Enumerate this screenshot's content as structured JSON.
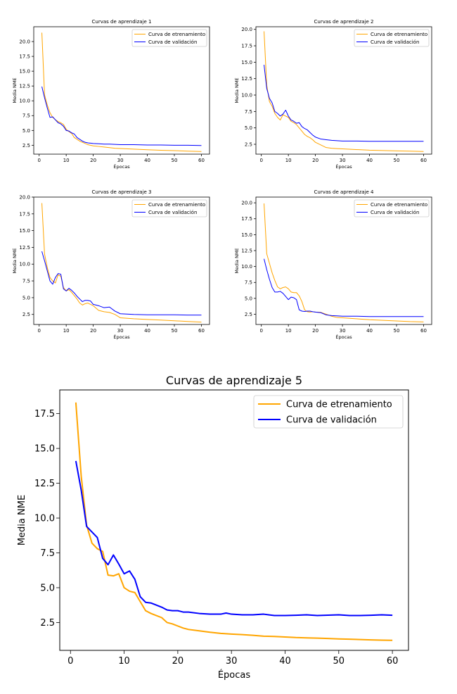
{
  "colors": {
    "train": "#FFA500",
    "val": "#0000FF",
    "axis": "#000000",
    "background": "#FFFFFF"
  },
  "chart_data": [
    {
      "type": "line",
      "title": "Curvas de aprendizaje 1",
      "xlabel": "Épocas",
      "ylabel": "Media NME",
      "xlim": [
        -2.0,
        63.0
      ],
      "ylim": [
        1.0,
        22.5
      ],
      "xticks": [
        0,
        10,
        20,
        30,
        40,
        50,
        60
      ],
      "yticks": [
        2.5,
        5.0,
        7.5,
        10.0,
        12.5,
        15.0,
        17.5,
        20.0
      ],
      "legend": "upper right",
      "series": [
        {
          "name": "Curva de etrenamiento",
          "color": "#FFA500",
          "x": [
            1,
            2,
            3,
            4,
            5,
            6,
            7,
            8,
            9,
            10,
            11,
            12,
            13,
            14,
            15,
            16,
            17,
            18,
            19,
            20,
            22,
            24,
            26,
            28,
            30,
            35,
            40,
            45,
            50,
            55,
            60
          ],
          "y": [
            21.5,
            11.0,
            9.3,
            8.0,
            7.2,
            6.8,
            6.5,
            6.3,
            6.0,
            5.2,
            4.8,
            4.5,
            3.8,
            3.5,
            3.2,
            3.0,
            2.8,
            2.6,
            2.5,
            2.4,
            2.3,
            2.2,
            2.1,
            2.0,
            1.95,
            1.85,
            1.75,
            1.65,
            1.6,
            1.5,
            1.45
          ]
        },
        {
          "name": "Curva de validación",
          "color": "#0000FF",
          "x": [
            1,
            2,
            3,
            4,
            5,
            6,
            7,
            8,
            9,
            10,
            11,
            12,
            13,
            14,
            15,
            16,
            17,
            18,
            19,
            20,
            22,
            24,
            26,
            28,
            30,
            35,
            40,
            45,
            50,
            55,
            60
          ],
          "y": [
            12.4,
            10.5,
            8.8,
            7.2,
            7.3,
            6.8,
            6.3,
            6.1,
            5.7,
            5.0,
            4.9,
            4.6,
            4.4,
            3.8,
            3.5,
            3.2,
            3.0,
            2.9,
            2.85,
            2.8,
            2.75,
            2.7,
            2.7,
            2.65,
            2.6,
            2.6,
            2.55,
            2.55,
            2.5,
            2.5,
            2.45
          ]
        }
      ]
    },
    {
      "type": "line",
      "title": "Curvas de aprendizaje 2",
      "xlabel": "Épocas",
      "ylabel": "Media NME",
      "xlim": [
        -2.0,
        63.0
      ],
      "ylim": [
        1.0,
        20.4
      ],
      "xticks": [
        0,
        10,
        20,
        30,
        40,
        50,
        60
      ],
      "yticks": [
        2.5,
        5.0,
        7.5,
        10.0,
        12.5,
        15.0,
        17.5,
        20.0
      ],
      "legend": "upper right",
      "series": [
        {
          "name": "Curva de etrenamiento",
          "color": "#FFA500",
          "x": [
            1,
            2,
            3,
            4,
            5,
            6,
            7,
            8,
            9,
            10,
            11,
            12,
            13,
            14,
            15,
            16,
            17,
            18,
            19,
            20,
            22,
            24,
            26,
            28,
            30,
            35,
            40,
            45,
            50,
            55,
            60
          ],
          "y": [
            19.7,
            11.5,
            9.0,
            8.3,
            7.2,
            6.6,
            6.2,
            7.0,
            6.8,
            6.6,
            6.0,
            5.8,
            5.5,
            5.0,
            4.5,
            4.0,
            3.7,
            3.5,
            3.2,
            2.8,
            2.4,
            2.0,
            1.9,
            1.85,
            1.8,
            1.7,
            1.6,
            1.55,
            1.5,
            1.45,
            1.4
          ]
        },
        {
          "name": "Curva de validación",
          "color": "#0000FF",
          "x": [
            1,
            2,
            3,
            4,
            5,
            6,
            7,
            8,
            9,
            10,
            11,
            12,
            13,
            14,
            15,
            16,
            17,
            18,
            19,
            20,
            22,
            24,
            26,
            28,
            30,
            35,
            40,
            45,
            50,
            55,
            60
          ],
          "y": [
            14.6,
            11.0,
            9.5,
            8.8,
            7.5,
            7.2,
            6.8,
            7.1,
            7.7,
            6.8,
            6.2,
            6.0,
            5.7,
            5.8,
            5.2,
            4.9,
            4.7,
            4.3,
            3.9,
            3.6,
            3.3,
            3.2,
            3.1,
            3.05,
            3.0,
            3.0,
            2.95,
            2.95,
            2.95,
            2.95,
            2.95
          ]
        }
      ]
    },
    {
      "type": "line",
      "title": "Curvas de aprendizaje 3",
      "xlabel": "Épocas",
      "ylabel": "Media NME",
      "xlim": [
        -2.0,
        63.0
      ],
      "ylim": [
        1.0,
        20.0
      ],
      "xticks": [
        0,
        10,
        20,
        30,
        40,
        50,
        60
      ],
      "yticks": [
        2.5,
        5.0,
        7.5,
        10.0,
        12.5,
        15.0,
        17.5,
        20.0
      ],
      "legend": "upper right",
      "series": [
        {
          "name": "Curva de etrenamiento",
          "color": "#FFA500",
          "x": [
            1,
            2,
            3,
            4,
            5,
            6,
            7,
            8,
            9,
            10,
            11,
            12,
            13,
            14,
            15,
            16,
            17,
            18,
            19,
            20,
            22,
            24,
            26,
            28,
            30,
            35,
            40,
            45,
            50,
            55,
            60
          ],
          "y": [
            19.1,
            11.5,
            9.5,
            8.0,
            7.5,
            7.2,
            8.4,
            8.2,
            6.5,
            6.0,
            6.2,
            5.8,
            5.3,
            4.8,
            4.2,
            3.9,
            4.1,
            4.2,
            4.0,
            3.8,
            3.1,
            2.9,
            2.8,
            2.5,
            2.0,
            1.85,
            1.75,
            1.65,
            1.55,
            1.45,
            1.35
          ]
        },
        {
          "name": "Curva de validación",
          "color": "#0000FF",
          "x": [
            1,
            2,
            3,
            4,
            5,
            6,
            7,
            8,
            9,
            10,
            11,
            12,
            13,
            14,
            15,
            16,
            17,
            18,
            19,
            20,
            22,
            24,
            26,
            28,
            30,
            35,
            40,
            45,
            50,
            55,
            60
          ],
          "y": [
            11.9,
            10.5,
            9.0,
            7.5,
            7.0,
            8.0,
            8.6,
            8.5,
            6.3,
            6.0,
            6.4,
            6.1,
            5.7,
            5.2,
            4.8,
            4.4,
            4.6,
            4.6,
            4.5,
            4.0,
            3.8,
            3.5,
            3.6,
            3.0,
            2.6,
            2.5,
            2.45,
            2.45,
            2.45,
            2.4,
            2.4
          ]
        }
      ]
    },
    {
      "type": "line",
      "title": "Curvas de aprendizaje 4",
      "xlabel": "Épocas",
      "ylabel": "Media NME",
      "xlim": [
        -2.0,
        63.0
      ],
      "ylim": [
        0.9,
        20.9
      ],
      "xticks": [
        0,
        10,
        20,
        30,
        40,
        50,
        60
      ],
      "yticks": [
        2.5,
        5.0,
        7.5,
        10.0,
        12.5,
        15.0,
        17.5,
        20.0
      ],
      "legend": "upper right",
      "series": [
        {
          "name": "Curva de etrenamiento",
          "color": "#FFA500",
          "x": [
            1,
            2,
            3,
            4,
            5,
            6,
            7,
            8,
            9,
            10,
            11,
            12,
            13,
            14,
            15,
            16,
            17,
            18,
            19,
            20,
            22,
            24,
            26,
            28,
            30,
            35,
            40,
            45,
            50,
            55,
            60
          ],
          "y": [
            19.9,
            12.0,
            10.5,
            9.0,
            7.8,
            6.8,
            6.5,
            6.7,
            6.8,
            6.5,
            6.0,
            5.9,
            5.9,
            5.4,
            4.5,
            3.2,
            2.9,
            2.85,
            2.9,
            2.85,
            2.8,
            2.5,
            2.2,
            2.0,
            1.95,
            1.8,
            1.65,
            1.55,
            1.45,
            1.35,
            1.3
          ]
        },
        {
          "name": "Curva de validación",
          "color": "#0000FF",
          "x": [
            1,
            2,
            3,
            4,
            5,
            6,
            7,
            8,
            9,
            10,
            11,
            12,
            13,
            14,
            15,
            16,
            17,
            18,
            19,
            20,
            22,
            24,
            26,
            28,
            30,
            35,
            40,
            45,
            50,
            55,
            60
          ],
          "y": [
            11.2,
            9.5,
            8.0,
            6.7,
            6.0,
            6.0,
            6.1,
            5.8,
            5.3,
            4.8,
            5.2,
            5.1,
            4.8,
            3.2,
            3.0,
            2.95,
            3.0,
            3.0,
            2.9,
            2.85,
            2.75,
            2.4,
            2.3,
            2.25,
            2.2,
            2.2,
            2.15,
            2.15,
            2.15,
            2.15,
            2.15
          ]
        }
      ]
    },
    {
      "type": "line",
      "title": "Curvas de aprendizaje 5",
      "xlabel": "Épocas",
      "ylabel": "Media NME",
      "xlim": [
        -2.0,
        63.0
      ],
      "ylim": [
        0.5,
        19.2
      ],
      "xticks": [
        0,
        10,
        20,
        30,
        40,
        50,
        60
      ],
      "yticks": [
        2.5,
        5.0,
        7.5,
        10.0,
        12.5,
        15.0,
        17.5
      ],
      "legend": "upper right",
      "series": [
        {
          "name": "Curva de etrenamiento",
          "color": "#FFA500",
          "x": [
            1,
            2,
            3,
            4,
            5,
            6,
            7,
            8,
            9,
            10,
            11,
            12,
            13,
            14,
            15,
            16,
            17,
            18,
            19,
            20,
            21,
            22,
            24,
            26,
            28,
            30,
            32,
            34,
            36,
            38,
            40,
            42,
            44,
            46,
            48,
            50,
            52,
            54,
            56,
            58,
            60
          ],
          "y": [
            18.3,
            13.0,
            9.5,
            8.2,
            7.8,
            7.6,
            5.9,
            5.85,
            6.0,
            5.0,
            4.75,
            4.65,
            4.0,
            3.35,
            3.15,
            3.0,
            2.85,
            2.5,
            2.4,
            2.25,
            2.1,
            2.0,
            1.9,
            1.8,
            1.72,
            1.67,
            1.63,
            1.58,
            1.52,
            1.5,
            1.46,
            1.42,
            1.4,
            1.38,
            1.35,
            1.32,
            1.3,
            1.28,
            1.25,
            1.23,
            1.22
          ]
        },
        {
          "name": "Curva de validación",
          "color": "#0000FF",
          "x": [
            1,
            2,
            3,
            4,
            5,
            6,
            7,
            8,
            9,
            10,
            11,
            12,
            13,
            14,
            15,
            16,
            17,
            18,
            19,
            20,
            21,
            22,
            24,
            26,
            28,
            29,
            30,
            32,
            34,
            36,
            38,
            40,
            42,
            44,
            46,
            48,
            50,
            52,
            54,
            56,
            58,
            60
          ],
          "y": [
            14.1,
            12.0,
            9.4,
            9.0,
            8.6,
            7.1,
            6.65,
            7.35,
            6.7,
            6.0,
            6.2,
            5.6,
            4.35,
            3.95,
            3.9,
            3.75,
            3.6,
            3.4,
            3.35,
            3.35,
            3.25,
            3.25,
            3.15,
            3.1,
            3.1,
            3.18,
            3.1,
            3.05,
            3.05,
            3.1,
            3.0,
            3.0,
            3.02,
            3.05,
            3.0,
            3.03,
            3.05,
            3.0,
            3.0,
            3.02,
            3.05,
            3.02
          ]
        }
      ]
    }
  ]
}
